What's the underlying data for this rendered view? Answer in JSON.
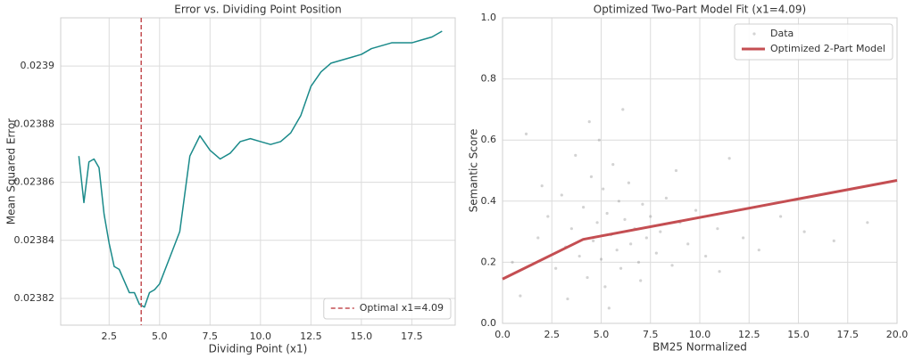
{
  "chart_data": [
    {
      "type": "line",
      "title": "Error vs. Dividing Point Position",
      "xlabel": "Dividing Point (x1)",
      "ylabel": "Mean Squared Error",
      "x": [
        1.0,
        1.25,
        1.5,
        1.75,
        2.0,
        2.25,
        2.5,
        2.75,
        3.0,
        3.25,
        3.5,
        3.75,
        4.0,
        4.25,
        4.5,
        4.75,
        5.0,
        5.5,
        6.0,
        6.5,
        7.0,
        7.5,
        8.0,
        8.5,
        9.0,
        9.5,
        10.0,
        10.5,
        11.0,
        11.5,
        12.0,
        12.5,
        13.0,
        13.5,
        14.0,
        14.5,
        15.0,
        15.5,
        16.0,
        16.5,
        17.0,
        17.5,
        18.0,
        18.5,
        19.0
      ],
      "values": [
        0.023869,
        0.023853,
        0.023867,
        0.023868,
        0.023865,
        0.023849,
        0.023839,
        0.023831,
        0.02383,
        0.023826,
        0.023822,
        0.023822,
        0.023818,
        0.023817,
        0.023822,
        0.023823,
        0.023825,
        0.023834,
        0.023843,
        0.023869,
        0.023876,
        0.023871,
        0.023868,
        0.02387,
        0.023874,
        0.023875,
        0.023874,
        0.023873,
        0.023874,
        0.023877,
        0.023883,
        0.023893,
        0.023898,
        0.023901,
        0.023902,
        0.023903,
        0.023904,
        0.023906,
        0.023907,
        0.023908,
        0.023908,
        0.023908,
        0.023909,
        0.02391,
        0.023912
      ],
      "color": "#1a8a8a",
      "vlines": [
        {
          "x": 4.09,
          "name": "Optimal x1=4.09",
          "color": "#c44e52"
        }
      ],
      "xlim": [
        0.1,
        19.65
      ],
      "ylim": [
        0.0238108,
        0.0239166
      ],
      "xticks": [
        2.5,
        {
          "value": 5,
          "label": "5.0"
        },
        7.5,
        {
          "value": 10,
          "label": "10.0"
        },
        12.5,
        {
          "value": 15,
          "label": "15.0"
        },
        17.5
      ],
      "yticks": [
        0.02382,
        0.02384,
        0.02386,
        0.02388,
        0.0239
      ],
      "grid": true,
      "legend": "lower right"
    },
    {
      "type": "scatter",
      "title": "Optimized Two-Part Model Fit (x1=4.09)",
      "xlabel": "BM25 Normalized",
      "ylabel": "Semantic Score",
      "series": [
        {
          "name": "Data",
          "type": "scatter",
          "color": "#808080",
          "x": [
            1.2,
            1.8,
            2.3,
            2.7,
            3.0,
            3.2,
            3.5,
            3.7,
            3.9,
            4.1,
            4.3,
            4.5,
            4.6,
            4.8,
            4.9,
            5.0,
            5.1,
            5.2,
            5.3,
            5.5,
            5.6,
            5.8,
            5.9,
            6.0,
            6.2,
            6.4,
            6.5,
            6.7,
            6.9,
            7.1,
            7.3,
            7.5,
            7.8,
            8.0,
            8.3,
            8.6,
            9.0,
            9.4,
            9.8,
            10.3,
            10.9,
            11.5,
            12.2,
            13.0,
            14.1,
            15.3,
            16.8,
            18.5,
            0.5,
            0.9,
            2.0,
            3.3,
            4.4,
            5.4,
            6.1,
            7.0,
            8.8,
            11.0
          ],
          "y": [
            0.62,
            0.28,
            0.35,
            0.18,
            0.42,
            0.25,
            0.31,
            0.55,
            0.22,
            0.38,
            0.15,
            0.48,
            0.27,
            0.33,
            0.6,
            0.21,
            0.44,
            0.12,
            0.36,
            0.29,
            0.52,
            0.24,
            0.4,
            0.18,
            0.34,
            0.46,
            0.26,
            0.31,
            0.2,
            0.39,
            0.28,
            0.35,
            0.23,
            0.3,
            0.41,
            0.19,
            0.33,
            0.26,
            0.37,
            0.22,
            0.31,
            0.54,
            0.28,
            0.24,
            0.35,
            0.3,
            0.27,
            0.33,
            0.2,
            0.09,
            0.45,
            0.08,
            0.66,
            0.05,
            0.7,
            0.14,
            0.5,
            0.17
          ]
        },
        {
          "name": "Optimized 2-Part Model",
          "type": "line",
          "color": "#c44e52",
          "x": [
            0,
            4.09,
            20
          ],
          "y": [
            0.145,
            0.275,
            0.468
          ]
        }
      ],
      "xlim": [
        0,
        20
      ],
      "ylim": [
        0,
        1
      ],
      "xticks": [
        {
          "value": 0,
          "label": "0.0"
        },
        2.5,
        {
          "value": 5,
          "label": "5.0"
        },
        7.5,
        {
          "value": 10,
          "label": "10.0"
        },
        12.5,
        {
          "value": 15,
          "label": "15.0"
        },
        17.5,
        {
          "value": 20,
          "label": "20.0"
        }
      ],
      "yticks": [
        {
          "value": 0,
          "label": "0.0"
        },
        0.2,
        0.4,
        0.6,
        0.8,
        {
          "value": 1,
          "label": "1.0"
        }
      ],
      "grid": true,
      "legend": "upper right"
    }
  ]
}
